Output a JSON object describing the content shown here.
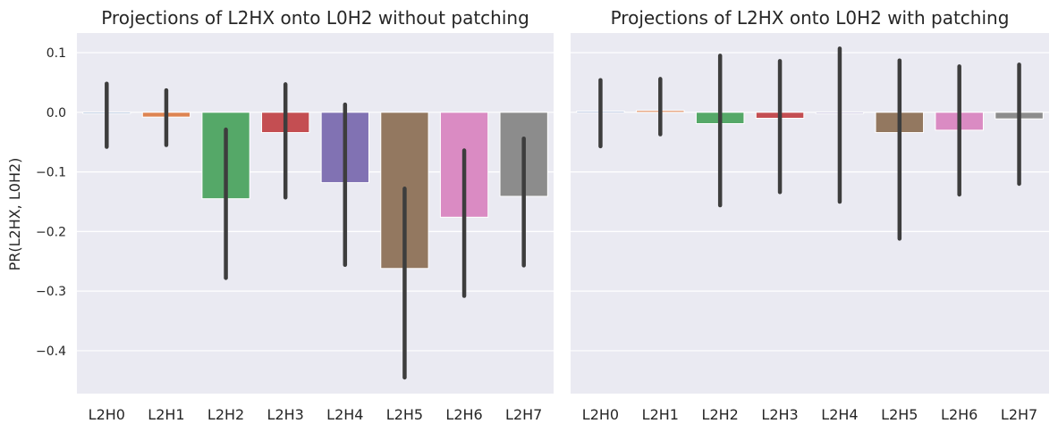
{
  "ylabel": "PR(L2HX, L0H2)",
  "colors": [
    "#4c72b0",
    "#dd8452",
    "#55a868",
    "#c44e52",
    "#8172b3",
    "#937860",
    "#da8bc3",
    "#8c8c8c"
  ],
  "errorbar_color": "#3d3d3d",
  "chart_data": [
    {
      "type": "bar",
      "title": "Projections of L2HX onto L0H2 without patching",
      "categories": [
        "L2H0",
        "L2H1",
        "L2H2",
        "L2H3",
        "L2H4",
        "L2H5",
        "L2H6",
        "L2H7"
      ],
      "values": [
        -0.002,
        -0.008,
        -0.145,
        -0.034,
        -0.118,
        -0.262,
        -0.176,
        -0.141
      ],
      "ci_low": [
        -0.058,
        -0.055,
        -0.278,
        -0.143,
        -0.256,
        -0.445,
        -0.308,
        -0.257
      ],
      "ci_high": [
        0.048,
        0.037,
        -0.029,
        0.047,
        0.013,
        -0.128,
        -0.064,
        -0.044
      ],
      "ylabel": "PR(L2HX, L0H2)",
      "yticks": [
        0.1,
        0.0,
        -0.1,
        -0.2,
        -0.3,
        -0.4
      ],
      "ytick_labels": [
        "0.1",
        "0.0",
        "−0.1",
        "−0.2",
        "−0.3",
        "−0.4"
      ],
      "ylim": [
        -0.472,
        0.133
      ],
      "grid": true
    },
    {
      "type": "bar",
      "title": "Projections of L2HX onto L0H2 with patching",
      "categories": [
        "L2H0",
        "L2H1",
        "L2H2",
        "L2H3",
        "L2H4",
        "L2H5",
        "L2H6",
        "L2H7"
      ],
      "values": [
        0.002,
        0.003,
        -0.019,
        -0.01,
        -0.002,
        -0.034,
        -0.03,
        -0.011
      ],
      "ci_low": [
        -0.057,
        -0.037,
        -0.156,
        -0.134,
        -0.15,
        -0.212,
        -0.138,
        -0.12
      ],
      "ci_high": [
        0.054,
        0.056,
        0.095,
        0.086,
        0.107,
        0.087,
        0.077,
        0.08
      ],
      "yticks": [
        0.1,
        0.0,
        -0.1,
        -0.2,
        -0.3,
        -0.4
      ],
      "ylim": [
        -0.472,
        0.133
      ],
      "grid": true,
      "sharey": true
    }
  ]
}
